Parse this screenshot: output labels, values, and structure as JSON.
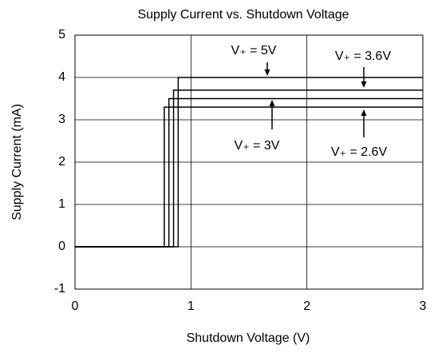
{
  "chart_data": {
    "type": "line",
    "title": "Supply Current vs. Shutdown Voltage",
    "xlabel": "Shutdown Voltage (V)",
    "ylabel": "Supply Current (mA)",
    "xlim": [
      0,
      3
    ],
    "xticks": [
      0,
      1,
      2,
      3
    ],
    "ylim": [
      -1,
      5
    ],
    "yticks": [
      -1,
      0,
      1,
      2,
      3,
      4,
      5
    ],
    "grid": true,
    "series": [
      {
        "color": "#000000",
        "x": [
          0,
          0.89,
          0.89,
          3
        ],
        "values": [
          0,
          0,
          4.0,
          4.0
        ]
      },
      {
        "color": "#000000",
        "x": [
          0,
          0.85,
          0.85,
          3
        ],
        "values": [
          0,
          0,
          3.7,
          3.7
        ]
      },
      {
        "color": "#000000",
        "x": [
          0,
          0.81,
          0.81,
          3
        ],
        "values": [
          0,
          0,
          3.5,
          3.5
        ]
      },
      {
        "color": "#000000",
        "x": [
          0,
          0.77,
          0.77,
          3
        ],
        "values": [
          0,
          0,
          3.3,
          3.3
        ]
      }
    ],
    "annotations": [
      "V₊ = 5V",
      "V₊ = 3.6V",
      "V₊ = 3V",
      "V₊ = 2.6V"
    ]
  }
}
